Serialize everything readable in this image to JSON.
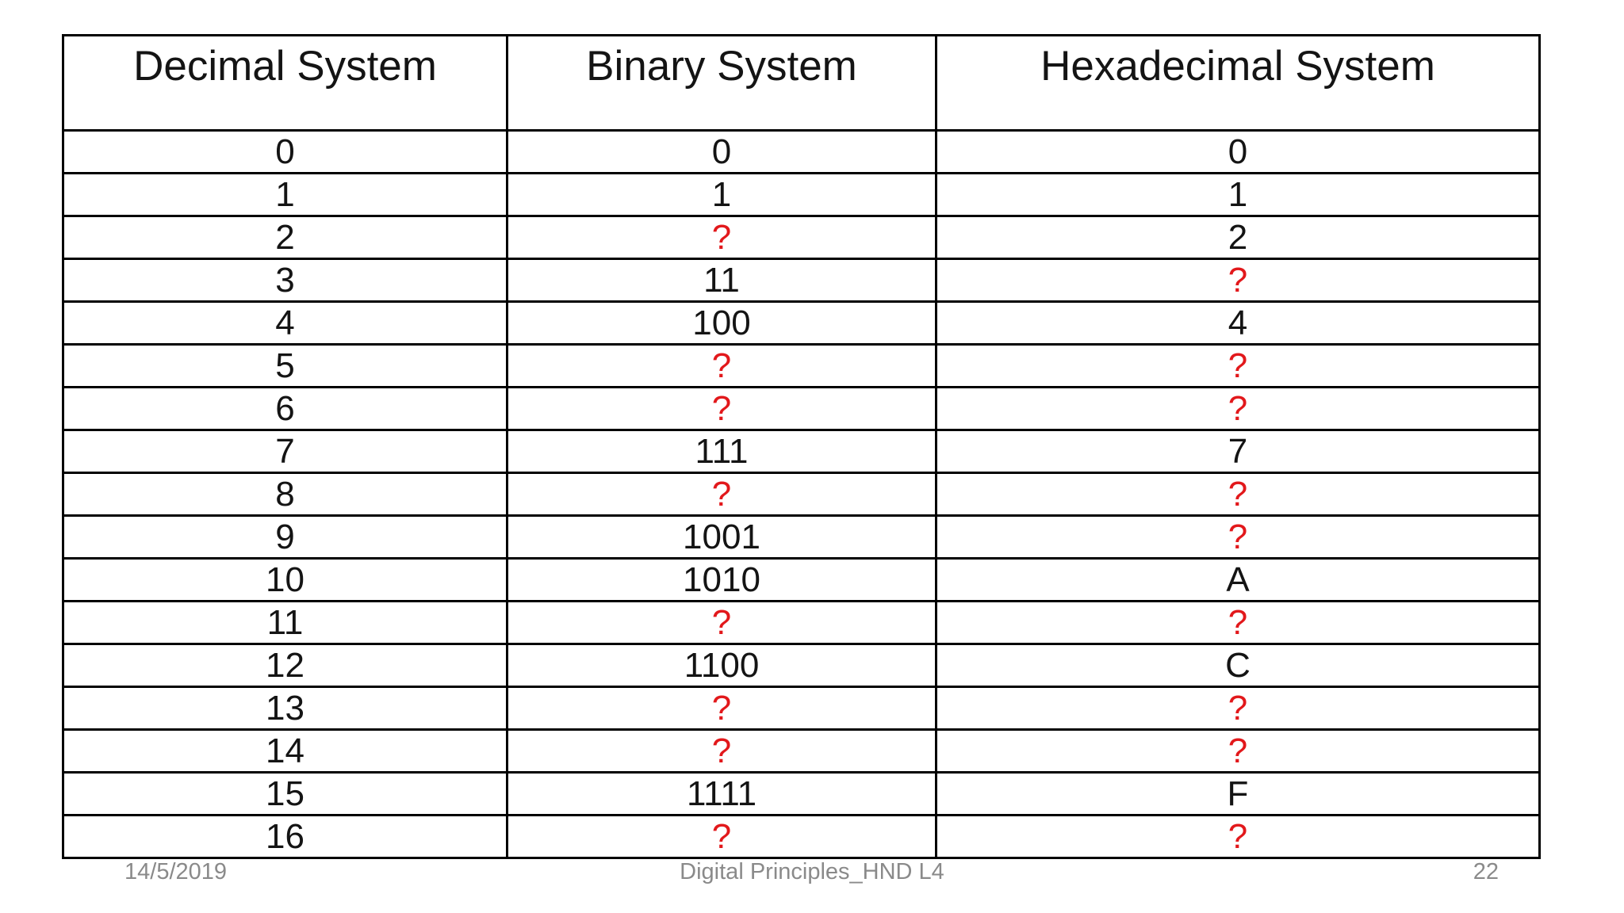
{
  "slide": {
    "footer": {
      "date": "14/5/2019",
      "title": "Digital Principles_HND L4",
      "page_number": "22"
    }
  },
  "table": {
    "headers": [
      "Decimal System",
      "Binary System",
      "Hexadecimal System"
    ],
    "rows": [
      {
        "cells": [
          {
            "text": "0"
          },
          {
            "text": "0"
          },
          {
            "text": "0"
          }
        ]
      },
      {
        "cells": [
          {
            "text": "1"
          },
          {
            "text": "1"
          },
          {
            "text": "1"
          }
        ]
      },
      {
        "cells": [
          {
            "text": "2"
          },
          {
            "text": "?",
            "red": true
          },
          {
            "text": "2"
          }
        ]
      },
      {
        "cells": [
          {
            "text": "3"
          },
          {
            "text": "11"
          },
          {
            "text": "?",
            "red": true
          }
        ]
      },
      {
        "cells": [
          {
            "text": "4"
          },
          {
            "text": "100"
          },
          {
            "text": "4"
          }
        ]
      },
      {
        "cells": [
          {
            "text": "5"
          },
          {
            "text": "?",
            "red": true
          },
          {
            "text": "?",
            "red": true
          }
        ]
      },
      {
        "cells": [
          {
            "text": "6"
          },
          {
            "text": "?",
            "red": true
          },
          {
            "text": "?",
            "red": true
          }
        ]
      },
      {
        "cells": [
          {
            "text": "7"
          },
          {
            "text": "111"
          },
          {
            "text": "7"
          }
        ]
      },
      {
        "cells": [
          {
            "text": "8"
          },
          {
            "text": "?",
            "red": true
          },
          {
            "text": "?",
            "red": true
          }
        ]
      },
      {
        "cells": [
          {
            "text": "9"
          },
          {
            "text": "1001"
          },
          {
            "text": "?",
            "red": true
          }
        ]
      },
      {
        "cells": [
          {
            "text": "10"
          },
          {
            "text": "1010"
          },
          {
            "text": "A"
          }
        ]
      },
      {
        "cells": [
          {
            "text": "11"
          },
          {
            "text": "?",
            "red": true
          },
          {
            "text": "?",
            "red": true
          }
        ]
      },
      {
        "cells": [
          {
            "text": "12"
          },
          {
            "text": "1100"
          },
          {
            "text": "C"
          }
        ]
      },
      {
        "cells": [
          {
            "text": "13"
          },
          {
            "text": "?",
            "red": true
          },
          {
            "text": "?",
            "red": true
          }
        ]
      },
      {
        "cells": [
          {
            "text": "14"
          },
          {
            "text": "?",
            "red": true
          },
          {
            "text": "?",
            "red": true
          }
        ]
      },
      {
        "cells": [
          {
            "text": "15"
          },
          {
            "text": "1111"
          },
          {
            "text": "F"
          }
        ]
      },
      {
        "cells": [
          {
            "text": "16"
          },
          {
            "text": "?",
            "red": true
          },
          {
            "text": "?",
            "red": true
          }
        ]
      }
    ]
  },
  "chart_data": {
    "type": "table",
    "columns": [
      "Decimal System",
      "Binary System",
      "Hexadecimal System"
    ],
    "rows": [
      [
        "0",
        "0",
        "0"
      ],
      [
        "1",
        "1",
        "1"
      ],
      [
        "2",
        "?",
        "2"
      ],
      [
        "3",
        "11",
        "?"
      ],
      [
        "4",
        "100",
        "4"
      ],
      [
        "5",
        "?",
        "?"
      ],
      [
        "6",
        "?",
        "?"
      ],
      [
        "7",
        "111",
        "7"
      ],
      [
        "8",
        "?",
        "?"
      ],
      [
        "9",
        "1001",
        "?"
      ],
      [
        "10",
        "1010",
        "A"
      ],
      [
        "11",
        "?",
        "?"
      ],
      [
        "12",
        "1100",
        "C"
      ],
      [
        "13",
        "?",
        "?"
      ],
      [
        "14",
        "?",
        "?"
      ],
      [
        "15",
        "1111",
        "F"
      ],
      [
        "16",
        "?",
        "?"
      ]
    ]
  },
  "colors": {
    "unknown_red": "#e2181b",
    "footer_gray": "#8a8a8a",
    "border_black": "#000000",
    "text_black": "#141414",
    "background": "#ffffff"
  }
}
